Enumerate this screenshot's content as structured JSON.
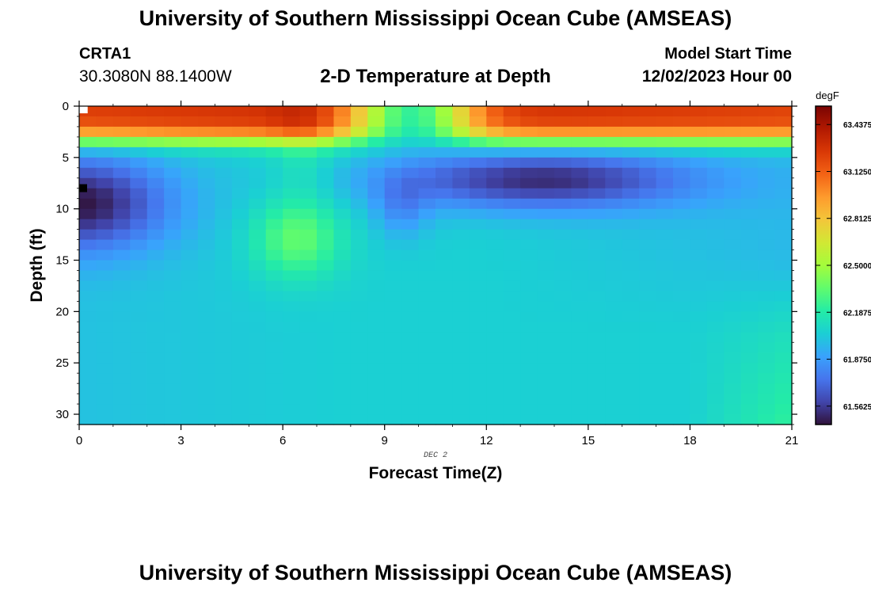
{
  "header": {
    "title": "University of Southern Mississippi Ocean Cube (AMSEAS)",
    "station_id": "CRTA1",
    "station_coords": "30.3080N  88.1400W",
    "subtitle": "2-D Temperature at Depth",
    "model_start_label": "Model Start Time",
    "model_start_value": "12/02/2023 Hour 00"
  },
  "footer": {
    "title": "University of Southern Mississippi Ocean Cube (AMSEAS)"
  },
  "chart_data": {
    "type": "heatmap",
    "title": "2-D Temperature at Depth",
    "xlabel": "Forecast Time(Z)",
    "ylabel": "Depth (ft)",
    "date_label": "DEC 2",
    "x_ticks": [
      "0",
      "3",
      "6",
      "9",
      "12",
      "15",
      "18",
      "21"
    ],
    "y_ticks": [
      "0",
      "5",
      "10",
      "15",
      "20",
      "25",
      "30"
    ],
    "xlim": [
      0,
      21
    ],
    "ylim": [
      0,
      31
    ],
    "colorbar": {
      "unit": "degF",
      "ticks": [
        "63.4375",
        "63.1250",
        "62.8125",
        "62.5000",
        "62.1875",
        "61.8750",
        "61.5625"
      ],
      "range": [
        61.44,
        63.56
      ],
      "colors": [
        "#30123b",
        "#4145ab",
        "#4675ed",
        "#39a2fc",
        "#1bcfd4",
        "#24eca6",
        "#61fc6c",
        "#a4fc3b",
        "#d1e834",
        "#f3c63a",
        "#fe9b2d",
        "#f36315",
        "#d93806",
        "#b11901",
        "#7a0403"
      ]
    },
    "grid": {
      "cols": 42,
      "rows": 31,
      "col_width_hours": 0.5,
      "row_height_ft": 1.0,
      "description": "temperature (degF) by forecast hour column and depth row"
    }
  }
}
